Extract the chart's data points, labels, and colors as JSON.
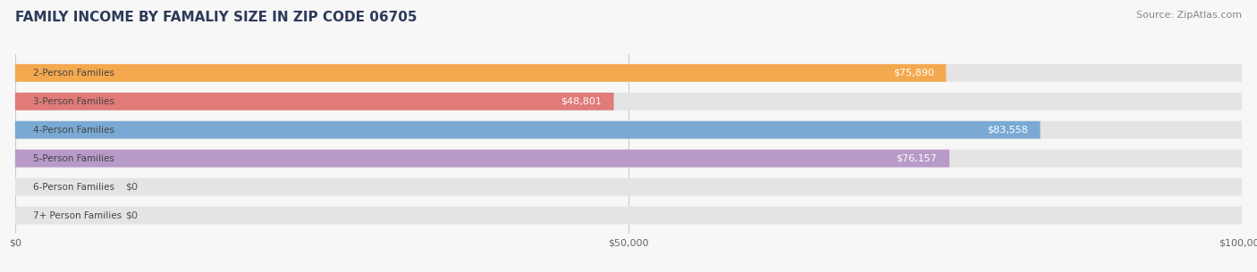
{
  "title": "FAMILY INCOME BY FAMALIY SIZE IN ZIP CODE 06705",
  "source": "Source: ZipAtlas.com",
  "categories": [
    "2-Person Families",
    "3-Person Families",
    "4-Person Families",
    "5-Person Families",
    "6-Person Families",
    "7+ Person Families"
  ],
  "values": [
    75890,
    48801,
    83558,
    76157,
    0,
    0
  ],
  "bar_colors": [
    "#f5a94e",
    "#e07b78",
    "#7aaad4",
    "#b89ac8",
    "#6ecfca",
    "#a8b8e8"
  ],
  "label_colors_inside": [
    "#ffffff",
    "#ffffff",
    "#ffffff",
    "#ffffff",
    "#555555",
    "#555555"
  ],
  "xlim": [
    0,
    100000
  ],
  "xticks": [
    0,
    50000,
    100000
  ],
  "xtick_labels": [
    "$0",
    "$50,000",
    "$100,000"
  ],
  "title_color": "#2d3a5a",
  "title_fontsize": 11,
  "source_fontsize": 8,
  "bar_height": 0.62,
  "background_color": "#f7f7f7",
  "bar_bg_color": "#e4e4e4",
  "label_fontsize": 8,
  "category_label_fontsize": 7.5,
  "category_label_color": "#444444",
  "grid_color": "#cccccc",
  "rounding": 0.06
}
